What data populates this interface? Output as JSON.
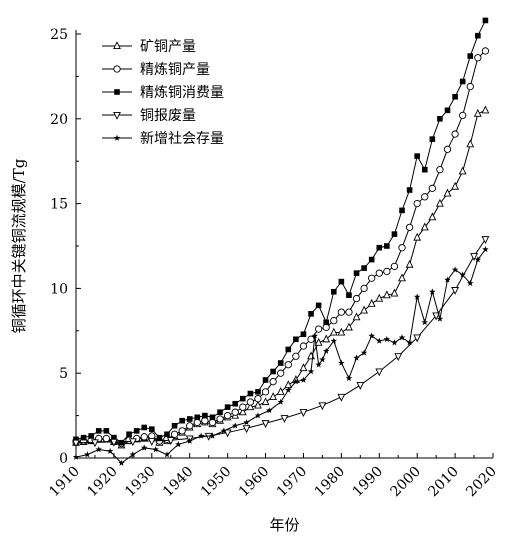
{
  "chart_data": {
    "type": "line",
    "xlabel": "年份",
    "ylabel": "铜循环中关键铜流规模/Tg",
    "xlim": [
      1910,
      2020
    ],
    "ylim": [
      0,
      25
    ],
    "xticks": [
      "1910",
      "1920",
      "1930",
      "1940",
      "1950",
      "1960",
      "1970",
      "1980",
      "1990",
      "2000",
      "2010",
      "2020"
    ],
    "yticks": [
      "0",
      "5",
      "10",
      "15",
      "20",
      "25"
    ],
    "legend_position": "top-left",
    "grid": false,
    "series": [
      {
        "name": "矿铜产量",
        "marker": "triangle-up",
        "x": [
          1910,
          1912,
          1914,
          1916,
          1918,
          1920,
          1922,
          1924,
          1926,
          1928,
          1930,
          1932,
          1934,
          1936,
          1938,
          1940,
          1942,
          1944,
          1946,
          1948,
          1950,
          1952,
          1954,
          1956,
          1958,
          1960,
          1962,
          1964,
          1966,
          1968,
          1970,
          1972,
          1974,
          1976,
          1978,
          1980,
          1982,
          1984,
          1986,
          1988,
          1990,
          1992,
          1994,
          1996,
          1998,
          2000,
          2002,
          2004,
          2006,
          2008,
          2010,
          2012,
          2014,
          2016,
          2018
        ],
        "values": [
          0.9,
          0.95,
          1.0,
          1.1,
          1.1,
          0.95,
          0.75,
          1.0,
          1.1,
          1.2,
          1.25,
          0.9,
          1.0,
          1.3,
          1.5,
          1.8,
          2.0,
          2.1,
          2.0,
          2.2,
          2.4,
          2.5,
          2.7,
          3.0,
          3.1,
          3.3,
          3.6,
          3.9,
          4.3,
          4.6,
          5.3,
          6.0,
          6.8,
          7.0,
          7.4,
          7.4,
          7.7,
          8.3,
          8.7,
          9.1,
          9.4,
          9.6,
          9.7,
          10.6,
          11.4,
          13.0,
          13.6,
          14.2,
          15.0,
          15.6,
          16.0,
          16.9,
          18.5,
          20.3,
          20.5
        ]
      },
      {
        "name": "精炼铜产量",
        "marker": "circle-open",
        "x": [
          1910,
          1912,
          1914,
          1916,
          1918,
          1920,
          1922,
          1924,
          1926,
          1928,
          1930,
          1932,
          1934,
          1936,
          1938,
          1940,
          1942,
          1944,
          1946,
          1948,
          1950,
          1952,
          1954,
          1956,
          1958,
          1960,
          1962,
          1964,
          1966,
          1968,
          1970,
          1972,
          1974,
          1976,
          1978,
          1980,
          1982,
          1984,
          1986,
          1988,
          1990,
          1992,
          1994,
          1996,
          1998,
          2000,
          2002,
          2004,
          2006,
          2008,
          2010,
          2012,
          2014,
          2016,
          2018
        ],
        "values": [
          0.95,
          1.0,
          1.05,
          1.15,
          1.15,
          1.0,
          0.85,
          1.05,
          1.15,
          1.25,
          1.3,
          1.0,
          1.1,
          1.4,
          1.6,
          1.9,
          2.1,
          2.2,
          2.1,
          2.3,
          2.5,
          2.7,
          3.0,
          3.3,
          3.5,
          3.9,
          4.5,
          5.0,
          5.5,
          6.0,
          6.6,
          7.0,
          7.6,
          7.7,
          8.1,
          8.6,
          8.6,
          9.4,
          10.0,
          10.6,
          10.9,
          11.0,
          11.3,
          12.4,
          13.6,
          15.0,
          15.4,
          15.9,
          17.0,
          18.2,
          19.1,
          20.2,
          21.9,
          23.6,
          24.0
        ]
      },
      {
        "name": "精炼铜消费量",
        "marker": "square-filled",
        "x": [
          1910,
          1912,
          1914,
          1916,
          1918,
          1920,
          1922,
          1924,
          1926,
          1928,
          1930,
          1932,
          1934,
          1936,
          1938,
          1940,
          1942,
          1944,
          1946,
          1948,
          1950,
          1952,
          1954,
          1956,
          1958,
          1960,
          1962,
          1964,
          1966,
          1968,
          1970,
          1972,
          1974,
          1976,
          1978,
          1980,
          1982,
          1984,
          1986,
          1988,
          1990,
          1992,
          1994,
          1996,
          1998,
          2000,
          2002,
          2004,
          2006,
          2008,
          2010,
          2012,
          2014,
          2016,
          2018
        ],
        "values": [
          1.1,
          1.2,
          1.3,
          1.6,
          1.6,
          1.2,
          0.9,
          1.4,
          1.6,
          1.8,
          1.7,
          1.2,
          1.4,
          1.9,
          2.2,
          2.3,
          2.4,
          2.5,
          2.4,
          2.7,
          3.0,
          3.2,
          3.5,
          3.8,
          3.9,
          4.6,
          5.1,
          5.6,
          6.4,
          7.0,
          7.3,
          8.5,
          9.0,
          8.0,
          9.8,
          10.4,
          9.6,
          10.9,
          11.2,
          11.7,
          12.4,
          12.5,
          13.2,
          14.6,
          15.8,
          17.8,
          17.0,
          18.8,
          20.0,
          20.5,
          21.3,
          22.2,
          23.7,
          24.9,
          25.8
        ]
      },
      {
        "name": "铜报废量",
        "marker": "triangle-down",
        "x": [
          1910,
          1915,
          1920,
          1925,
          1930,
          1935,
          1940,
          1945,
          1950,
          1955,
          1960,
          1965,
          1970,
          1975,
          1980,
          1985,
          1990,
          1995,
          2000,
          2005,
          2010,
          2015,
          2018
        ],
        "values": [
          0.9,
          0.92,
          0.95,
          0.98,
          1.0,
          1.05,
          1.15,
          1.3,
          1.5,
          1.75,
          2.05,
          2.35,
          2.7,
          3.1,
          3.6,
          4.3,
          5.1,
          6.0,
          7.1,
          8.4,
          9.9,
          11.9,
          12.9
        ]
      },
      {
        "name": "新增社会存量",
        "marker": "star",
        "x": [
          1910,
          1913,
          1916,
          1919,
          1922,
          1925,
          1928,
          1931,
          1934,
          1937,
          1940,
          1943,
          1946,
          1949,
          1952,
          1955,
          1958,
          1961,
          1964,
          1966,
          1968,
          1970,
          1972,
          1973,
          1974,
          1975,
          1976,
          1978,
          1980,
          1982,
          1984,
          1986,
          1988,
          1990,
          1992,
          1994,
          1996,
          1998,
          2000,
          2002,
          2004,
          2006,
          2008,
          2010,
          2012,
          2014,
          2016,
          2018
        ],
        "values": [
          0.05,
          0.2,
          0.5,
          0.4,
          -0.3,
          0.2,
          0.6,
          0.5,
          0.2,
          0.8,
          1.0,
          1.3,
          1.3,
          1.6,
          1.9,
          2.1,
          2.5,
          2.8,
          3.3,
          4.0,
          4.5,
          4.6,
          5.1,
          7.2,
          5.5,
          5.8,
          6.3,
          6.9,
          5.6,
          4.7,
          5.9,
          6.2,
          7.2,
          6.9,
          7.0,
          6.8,
          7.1,
          6.8,
          9.5,
          8.0,
          9.8,
          8.2,
          10.5,
          11.1,
          10.8,
          10.3,
          11.7,
          12.3
        ]
      }
    ]
  }
}
